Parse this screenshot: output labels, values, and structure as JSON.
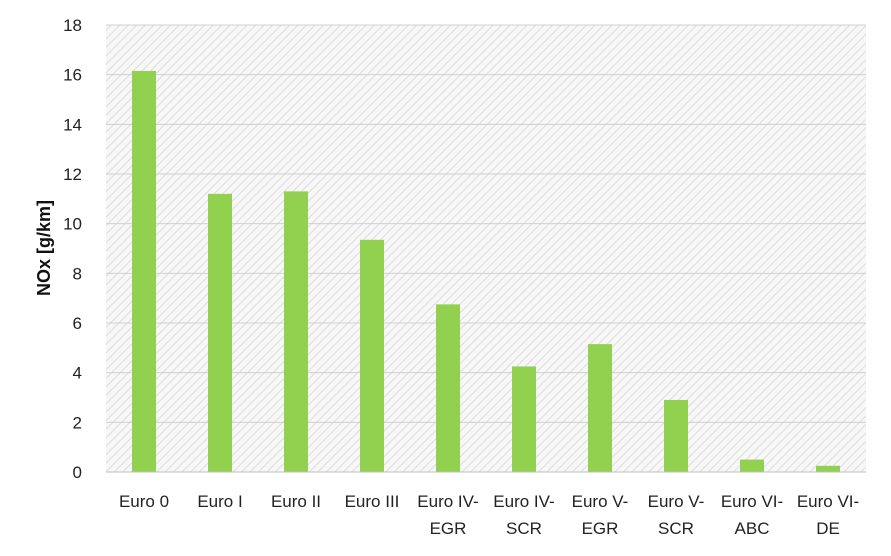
{
  "chart_data": {
    "type": "bar",
    "title": "",
    "xlabel": "",
    "ylabel": "NOx [g/km]",
    "ylim": [
      0,
      18
    ],
    "yticks": [
      0,
      2,
      4,
      6,
      8,
      10,
      12,
      14,
      16,
      18
    ],
    "grid": true,
    "legend": "none",
    "categories": [
      [
        "Euro 0"
      ],
      [
        "Euro I"
      ],
      [
        "Euro II"
      ],
      [
        "Euro III"
      ],
      [
        "Euro IV-",
        "EGR"
      ],
      [
        "Euro IV-",
        "SCR"
      ],
      [
        "Euro V-",
        "EGR"
      ],
      [
        "Euro V-",
        "SCR"
      ],
      [
        "Euro VI-",
        "ABC"
      ],
      [
        "Euro VI-",
        "DE"
      ]
    ],
    "values": [
      16.15,
      11.2,
      11.3,
      9.35,
      6.75,
      4.25,
      5.15,
      2.9,
      0.5,
      0.25
    ],
    "colors": {
      "bar": "#92d050",
      "grid": "#d0d0d0",
      "hatch": "#d9d9d9",
      "plot_bg": "#f7f7f7"
    }
  }
}
